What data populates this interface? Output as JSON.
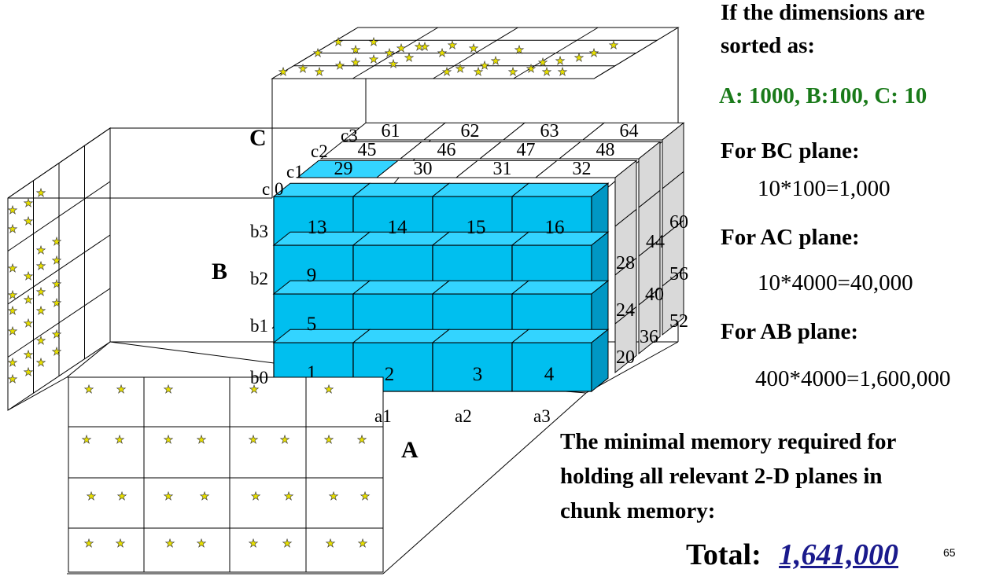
{
  "diagram": {
    "axes": {
      "A": "A",
      "B": "B",
      "C": "C"
    },
    "a_labels": [
      "a1",
      "a2",
      "a3"
    ],
    "b_labels": [
      "b3",
      "b2",
      "b1",
      "b0"
    ],
    "c_labels": [
      "c 0",
      "c1",
      "c2",
      "c3"
    ],
    "front_chunks": [
      "13",
      "14",
      "15",
      "16",
      "9",
      "5",
      "1",
      "2",
      "3",
      "4"
    ],
    "top_back_rows": [
      [
        "61",
        "62",
        "63",
        "64"
      ],
      [
        "45",
        "46",
        "47",
        "48"
      ],
      [
        "29",
        "30",
        "31",
        "32"
      ]
    ],
    "right_side_chunks": [
      "60",
      "44",
      "28",
      "56",
      "40",
      "24",
      "52",
      "36",
      "20"
    ],
    "star_glyph": "★",
    "star_color": "#e8e000"
  },
  "text": {
    "heading_line1": "If the dimensions are",
    "heading_line2": "sorted as:",
    "sort_order": "A: 1000, B:100, C: 10",
    "bc_label": "For BC plane:",
    "bc_value": "10*100=1,000",
    "ac_label": "For AC plane:",
    "ac_value": "10*4000=40,000",
    "ab_label": "For AB plane:",
    "ab_value": "400*4000=1,600,000",
    "minimal_line1": "The minimal memory required for",
    "minimal_line2": "holding all relevant 2-D planes in",
    "minimal_line3": "chunk memory:",
    "total_label": "Total:",
    "total_value": "1,641,000",
    "page_number": "65"
  },
  "colors": {
    "chunk_front": "#00bfef",
    "chunk_top": "#33d4ff",
    "chunk_side": "#0097c4",
    "back_chunk_side": "#d9d9d9",
    "sort_order_green": "#1a7a1a",
    "total_blue": "#1a1a8c"
  }
}
